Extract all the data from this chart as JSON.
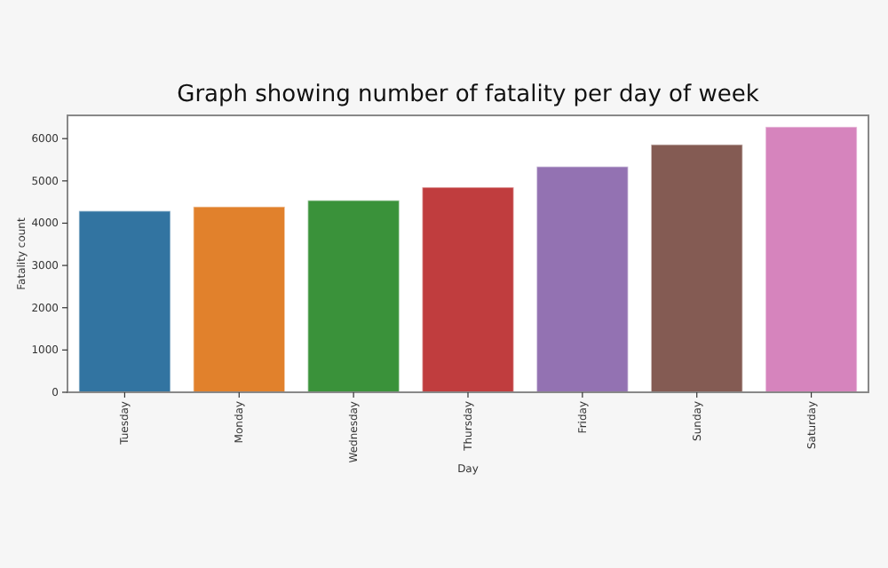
{
  "chart_data": {
    "type": "bar",
    "title": "Graph showing number of fatality per day of week",
    "xlabel": "Day",
    "ylabel": "Fatality count",
    "categories": [
      "Tuesday",
      "Monday",
      "Wednesday",
      "Thursday",
      "Friday",
      "Sunday",
      "Saturday"
    ],
    "values": [
      4290,
      4390,
      4540,
      4850,
      5340,
      5860,
      6280
    ],
    "colors": [
      "#3274a1",
      "#e1812c",
      "#3a923a",
      "#c03d3e",
      "#9372b2",
      "#845b53",
      "#d684bd"
    ],
    "ylim": [
      0,
      6550
    ],
    "yticks": [
      0,
      1000,
      2000,
      3000,
      4000,
      5000,
      6000
    ],
    "grid": false
  }
}
